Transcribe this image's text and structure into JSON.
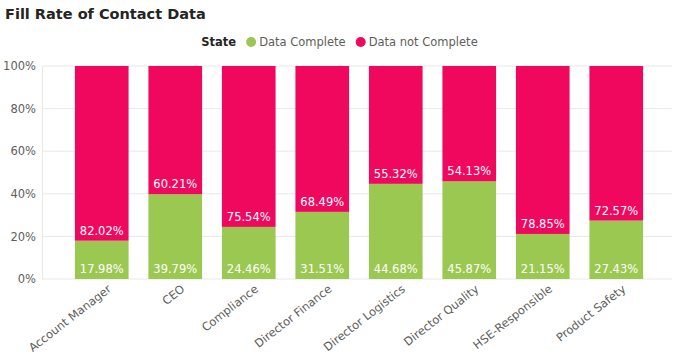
{
  "chart_data": {
    "type": "bar",
    "title": "Fill Rate of Contact Data",
    "legend_title": "State",
    "categories": [
      "Account Manager",
      "CEO",
      "Compliance",
      "Director Finance",
      "Director Logistics",
      "Director Quality",
      "HSE-Responsible",
      "Product Safety"
    ],
    "series": [
      {
        "name": "Data Complete",
        "color": "#9bc850",
        "values": [
          17.98,
          39.79,
          24.46,
          31.51,
          44.68,
          45.87,
          21.15,
          27.43
        ],
        "value_labels": [
          "17.98%",
          "39.79%",
          "24.46%",
          "31.51%",
          "44.68%",
          "45.87%",
          "21.15%",
          "27.43%"
        ]
      },
      {
        "name": "Data not Complete",
        "color": "#f0085f",
        "values": [
          82.02,
          60.21,
          75.54,
          68.49,
          55.32,
          54.13,
          78.85,
          72.57
        ],
        "value_labels": [
          "82.02%",
          "60.21%",
          "75.54%",
          "68.49%",
          "55.32%",
          "54.13%",
          "78.85%",
          "72.57%"
        ]
      }
    ],
    "ylim": [
      0,
      100
    ],
    "yticks": [
      {
        "value": 0,
        "label": "0%"
      },
      {
        "value": 20,
        "label": "20%"
      },
      {
        "value": 40,
        "label": "40%"
      },
      {
        "value": 60,
        "label": "60%"
      },
      {
        "value": 80,
        "label": "80%"
      },
      {
        "value": 100,
        "label": "100%"
      }
    ],
    "stacked": true,
    "data_labels": true,
    "grid": true,
    "legend": "top"
  }
}
